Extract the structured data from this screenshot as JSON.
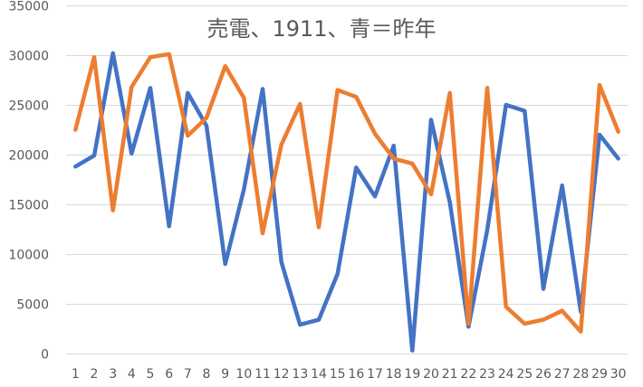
{
  "chart_data": {
    "type": "line",
    "title": "売電、1911、青＝昨年",
    "xlabel": "",
    "ylabel": "",
    "categories": [
      "1",
      "2",
      "3",
      "4",
      "5",
      "6",
      "7",
      "8",
      "9",
      "10",
      "11",
      "12",
      "13",
      "14",
      "15",
      "16",
      "17",
      "18",
      "19",
      "20",
      "21",
      "22",
      "23",
      "24",
      "25",
      "26",
      "27",
      "28",
      "29",
      "30"
    ],
    "ylim": [
      0,
      35000
    ],
    "yticks": [
      0,
      5000,
      10000,
      15000,
      20000,
      25000,
      30000,
      35000
    ],
    "grid": true,
    "legend": "none",
    "series": [
      {
        "color": "#4472C4",
        "values": [
          18800,
          19900,
          30200,
          20100,
          26700,
          12800,
          26200,
          22900,
          9000,
          16500,
          26600,
          9200,
          2900,
          3400,
          8000,
          18700,
          15800,
          20900,
          300,
          23500,
          15200,
          2700,
          12400,
          25000,
          24400,
          6500,
          16900,
          4200,
          22000,
          19600
        ]
      },
      {
        "color": "#ED7D31",
        "values": [
          22500,
          29800,
          14400,
          26800,
          29800,
          30100,
          21900,
          23700,
          28900,
          25700,
          12100,
          21000,
          25100,
          12700,
          26500,
          25800,
          22100,
          19600,
          19100,
          16000,
          26200,
          3000,
          26700,
          4700,
          3000,
          3400,
          4300,
          2200,
          27000,
          22300
        ]
      }
    ]
  }
}
